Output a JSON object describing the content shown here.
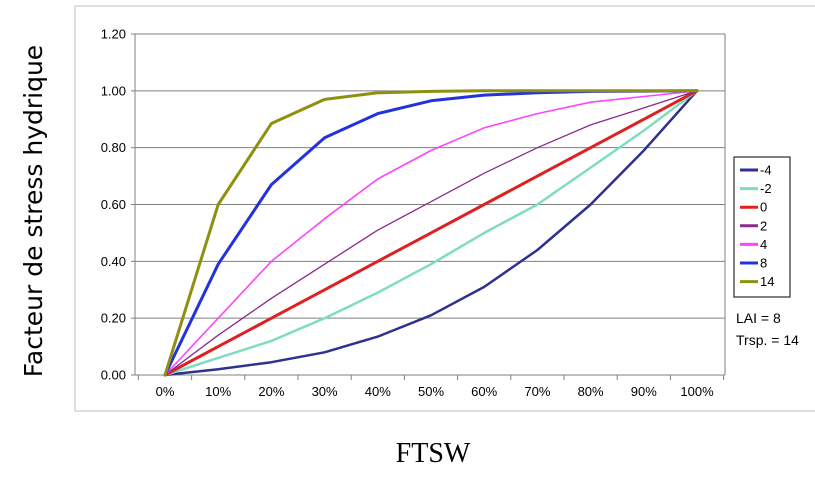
{
  "chart_data": {
    "type": "line",
    "xlabel": "FTSW",
    "ylabel": "Facteur de stress hydrique",
    "x_tick_labels": [
      "0%",
      "10%",
      "20%",
      "30%",
      "40%",
      "50%",
      "60%",
      "70%",
      "80%",
      "90%",
      "100%"
    ],
    "y_tick_labels": [
      "0.00",
      "0.20",
      "0.40",
      "0.60",
      "0.80",
      "1.00",
      "1.20"
    ],
    "x": [
      0,
      0.1,
      0.2,
      0.3,
      0.4,
      0.5,
      0.6,
      0.7,
      0.8,
      0.9,
      1.0
    ],
    "ylim": [
      0,
      1.2
    ],
    "grid": "horizontal",
    "legend_position": "right",
    "series": [
      {
        "name": "-4",
        "color": "#2e3192",
        "values": [
          0.0,
          0.02,
          0.045,
          0.08,
          0.135,
          0.21,
          0.31,
          0.44,
          0.6,
          0.79,
          1.0
        ]
      },
      {
        "name": "-2",
        "color": "#7fdcc1",
        "values": [
          0.0,
          0.06,
          0.12,
          0.2,
          0.29,
          0.39,
          0.5,
          0.6,
          0.73,
          0.86,
          1.0
        ]
      },
      {
        "name": "0",
        "color": "#e02020",
        "values": [
          0.0,
          0.1,
          0.2,
          0.3,
          0.4,
          0.5,
          0.6,
          0.7,
          0.8,
          0.9,
          1.0
        ]
      },
      {
        "name": "2",
        "color": "#8b2a8b",
        "values": [
          0.0,
          0.14,
          0.27,
          0.39,
          0.51,
          0.61,
          0.71,
          0.8,
          0.88,
          0.94,
          1.0
        ]
      },
      {
        "name": "4",
        "color": "#ff44ff",
        "values": [
          0.0,
          0.2,
          0.4,
          0.55,
          0.69,
          0.79,
          0.87,
          0.92,
          0.96,
          0.98,
          1.0
        ]
      },
      {
        "name": "8",
        "color": "#2233dd",
        "values": [
          0.0,
          0.39,
          0.67,
          0.835,
          0.92,
          0.965,
          0.985,
          0.993,
          0.998,
          0.999,
          1.0
        ]
      },
      {
        "name": "14",
        "color": "#8f8f10",
        "values": [
          0.0,
          0.6,
          0.885,
          0.97,
          0.993,
          0.998,
          1.0,
          1.0,
          1.0,
          1.0,
          1.0
        ]
      }
    ],
    "annotations": [
      "LAI = 8",
      "Trsp. = 14"
    ]
  },
  "colors": {
    "plot_background": "#ffffff",
    "gridline": "#808080",
    "frame": "#c0c0c0",
    "axis": "#808080"
  }
}
